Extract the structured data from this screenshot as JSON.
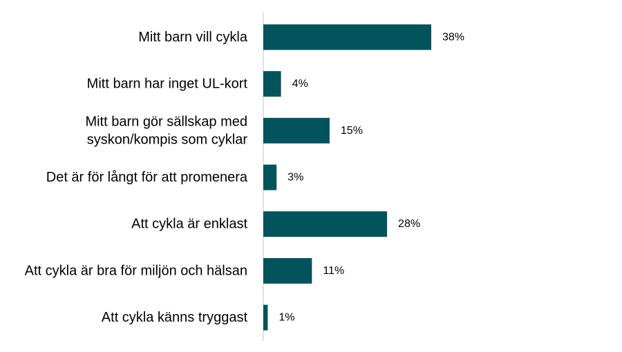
{
  "chart_data": {
    "type": "bar",
    "orientation": "horizontal",
    "categories": [
      "Mitt barn vill cykla",
      "Mitt barn har inget UL-kort",
      "Mitt barn gör sällskap med syskon/kompis som cyklar",
      "Det är för långt för att promenera",
      "Att cykla är enklast",
      "Att cykla är bra för miljön och hälsan",
      "Att cykla känns tryggast"
    ],
    "category_lines": [
      [
        "Mitt barn vill cykla"
      ],
      [
        "Mitt barn har inget UL-kort"
      ],
      [
        "Mitt barn gör sällskap med",
        "syskon/kompis som cyklar"
      ],
      [
        "Det är för långt för att promenera"
      ],
      [
        "Att cykla är enklast"
      ],
      [
        "Att cykla är bra för miljön och hälsan"
      ],
      [
        "Att cykla känns tryggast"
      ]
    ],
    "values": [
      38,
      4,
      15,
      3,
      28,
      11,
      1
    ],
    "value_labels": [
      "38%",
      "4%",
      "15%",
      "3%",
      "28%",
      "11%",
      "1%"
    ],
    "unit": "%",
    "xlim": [
      0,
      70
    ],
    "title": "",
    "xlabel": "",
    "ylabel": "",
    "grid": false,
    "legend": "none",
    "colors": {
      "bar": "#02535b",
      "axis": "#d9d9d9"
    }
  }
}
